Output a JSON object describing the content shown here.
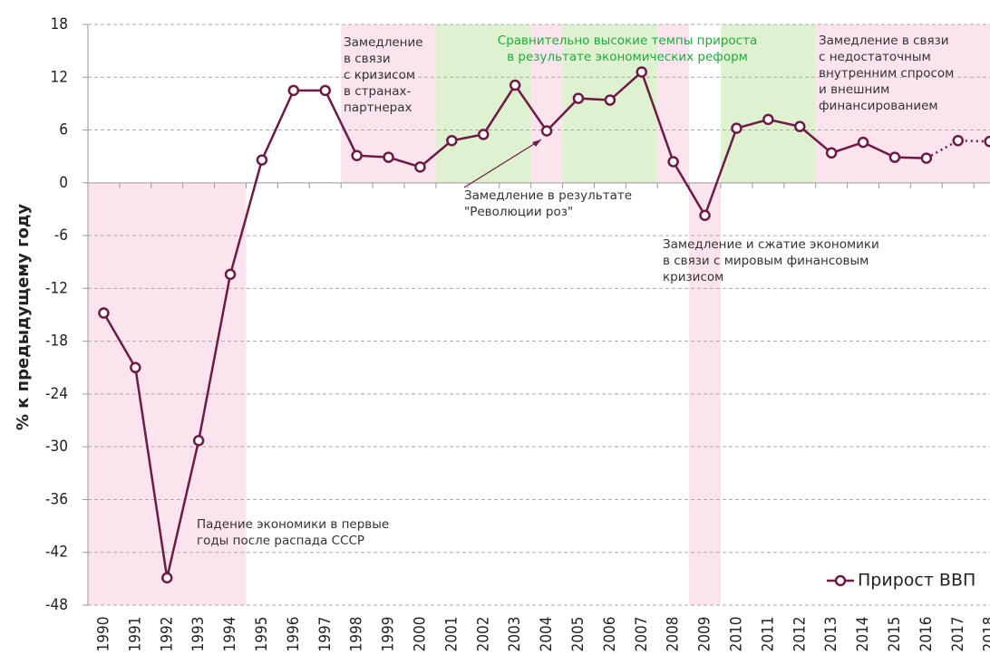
{
  "chart_data": {
    "type": "line",
    "y_axis_label": "% к предыдущему году",
    "categories": [
      "1990",
      "1991",
      "1992",
      "1993",
      "1994",
      "1995",
      "1996",
      "1997",
      "1998",
      "1999",
      "2000",
      "2001",
      "2002",
      "2003",
      "2004",
      "2005",
      "2006",
      "2007",
      "2008",
      "2009",
      "2010",
      "2011",
      "2012",
      "2013",
      "2014",
      "2015",
      "2016",
      "2017",
      "2018"
    ],
    "series": [
      {
        "name": "Прирост ВВП",
        "color": "#6d1a45",
        "dashed_from_category": "2016",
        "values": [
          -14.8,
          -21,
          -44.9,
          -29.3,
          -10.4,
          2.6,
          10.5,
          10.5,
          3.1,
          2.9,
          1.8,
          4.8,
          5.5,
          11.1,
          5.9,
          9.6,
          9.4,
          12.6,
          2.4,
          -3.7,
          6.2,
          7.2,
          6.4,
          3.4,
          4.6,
          2.9,
          2.8,
          4.8,
          4.7
        ]
      }
    ],
    "ylim": [
      -48,
      18
    ],
    "yticks": [
      -48,
      -42,
      -36,
      -30,
      -24,
      -18,
      -12,
      -6,
      0,
      6,
      12,
      18
    ],
    "grid": true,
    "regions": [
      {
        "from": "1990",
        "to": "1994",
        "y_from": -48,
        "y_to": 0,
        "color": "#fce4ef"
      },
      {
        "from": "1998",
        "to": "2000",
        "y_from": 0,
        "y_to": 18,
        "color": "#fce4ef"
      },
      {
        "from": "2001",
        "to": "2003",
        "y_from": 0,
        "y_to": 18,
        "color": "#dff2cf"
      },
      {
        "from": "2004",
        "to": "2004",
        "y_from": 0,
        "y_to": 18,
        "color": "#fce4ef"
      },
      {
        "from": "2005",
        "to": "2007",
        "y_from": 0,
        "y_to": 18,
        "color": "#dff2cf"
      },
      {
        "from": "2008",
        "to": "2008",
        "y_from": 0,
        "y_to": 18,
        "color": "#fce4ef"
      },
      {
        "from": "2009",
        "to": "2009",
        "y_from": -48,
        "y_to": 0,
        "color": "#fce4ef"
      },
      {
        "from": "2010",
        "to": "2012",
        "y_from": 0,
        "y_to": 18,
        "color": "#dff2cf"
      },
      {
        "from": "2013",
        "to": "2018",
        "y_from": 0,
        "y_to": 18,
        "color": "#fce4ef"
      }
    ],
    "annotations": [
      {
        "lines": [
          "Замедление",
          "в связи",
          "с кризисом",
          "в странах-",
          "партнерах"
        ],
        "color": "#333333"
      },
      {
        "lines": [
          "Сравнительно высокие темпы прироста",
          "в результате экономических реформ"
        ],
        "color": "#1faa3c"
      },
      {
        "lines": [
          "Замедление в связи",
          "с недостаточным",
          "внутренним спросом",
          "и внешним",
          "финансированием"
        ],
        "color": "#333333"
      },
      {
        "lines": [
          "Замедление в результате",
          "\"Революции роз\""
        ],
        "color": "#333333"
      },
      {
        "lines": [
          "Замедление и сжатие экономики",
          "в связи с мировым финансовым",
          "кризисом"
        ],
        "color": "#333333"
      },
      {
        "lines": [
          "Падение экономики в первые",
          "годы после распада СССР"
        ],
        "color": "#333333"
      }
    ]
  }
}
